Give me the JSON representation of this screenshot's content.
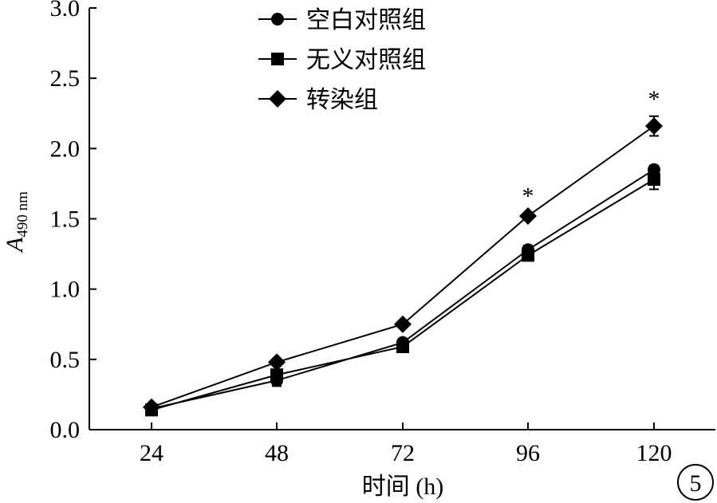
{
  "chart_data": {
    "type": "line",
    "xlabel": "时间 (h)",
    "ylabel_main": "A",
    "ylabel_sub": "490 nm",
    "categories": [
      "24",
      "48",
      "72",
      "96",
      "120"
    ],
    "y_ticks": [
      "0.0",
      "0.5",
      "1.0",
      "1.5",
      "2.0",
      "2.5",
      "3.0"
    ],
    "ylim": [
      0,
      3.0
    ],
    "grid": false,
    "legend_position": "top",
    "series": [
      {
        "name": "空白对照组",
        "marker": "circle",
        "values": [
          0.15,
          0.35,
          0.62,
          1.28,
          1.85
        ],
        "errors": [
          0.02,
          0.04,
          0.02,
          0.03,
          0.03
        ]
      },
      {
        "name": "无义对照组",
        "marker": "square",
        "values": [
          0.14,
          0.39,
          0.59,
          1.24,
          1.78
        ],
        "errors": [
          0.02,
          0.03,
          0.02,
          0.03,
          0.07
        ]
      },
      {
        "name": "转染组",
        "marker": "diamond",
        "values": [
          0.16,
          0.48,
          0.75,
          1.52,
          2.16
        ],
        "errors": [
          0.02,
          0.02,
          0.02,
          0.02,
          0.07
        ]
      }
    ],
    "annotations": [
      {
        "text": "*",
        "category": "96"
      },
      {
        "text": "*",
        "category": "120"
      }
    ],
    "panel_label": "5"
  }
}
